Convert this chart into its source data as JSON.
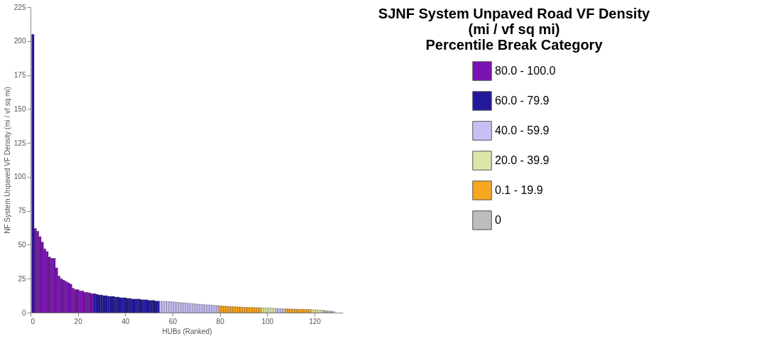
{
  "chart_data": {
    "type": "bar",
    "xlabel": "HUBs (Ranked)",
    "ylabel": "NF System Unpaved VF Density (mi / vf sq mi)",
    "legend_title": "SJNF System Unpaved Road VF Density\n(mi / vf sq mi)\nPercentile Break Category",
    "xlim": [
      0,
      132
    ],
    "xticks": [
      0,
      20,
      40,
      60,
      80,
      100,
      120
    ],
    "ylim": [
      0,
      225
    ],
    "yticks": [
      0,
      25,
      50,
      75,
      100,
      125,
      150,
      175,
      200,
      225
    ],
    "grid": false,
    "legend": "right",
    "series": [
      {
        "name": "80.0 - 100.0",
        "color": "#7a12b4",
        "x": [
          2,
          3,
          4,
          5,
          6,
          7,
          8,
          9,
          10,
          11,
          12,
          13,
          14,
          15,
          16,
          17,
          18,
          19,
          20,
          21,
          22,
          23,
          24,
          25,
          26
        ],
        "values": [
          62,
          60,
          56,
          52,
          47,
          45,
          41,
          40,
          40,
          33,
          27,
          25,
          24,
          23,
          22,
          21,
          18,
          17,
          17,
          16,
          16,
          15,
          15,
          14.5,
          14
        ]
      },
      {
        "name": "60.0 - 79.9",
        "color": "#23189c",
        "x": [
          1,
          27,
          28,
          29,
          30,
          31,
          32,
          33,
          34,
          35,
          36,
          37,
          38,
          39,
          40,
          41,
          42,
          43,
          44,
          45,
          46,
          47,
          48,
          49,
          50,
          51,
          52,
          53,
          54
        ],
        "values": [
          205,
          14,
          13.5,
          13,
          13,
          12.5,
          12.5,
          12,
          12,
          12,
          11.5,
          11.5,
          11,
          11,
          11,
          10.5,
          10.5,
          10,
          10,
          10,
          10,
          9.5,
          9.5,
          9.5,
          9,
          9,
          9,
          8.5,
          8.5
        ]
      },
      {
        "name": "40.0 - 59.9",
        "color": "#c8c0f4",
        "x": [
          55,
          56,
          57,
          58,
          59,
          60,
          61,
          62,
          63,
          64,
          65,
          66,
          67,
          68,
          69,
          70,
          71,
          72,
          73,
          74,
          75,
          76,
          77,
          78,
          79,
          104,
          105,
          106,
          107
        ],
        "values": [
          8.4,
          8.3,
          8.3,
          8.2,
          8.1,
          8.0,
          7.8,
          7.6,
          7.5,
          7.3,
          7.2,
          7.0,
          6.8,
          6.7,
          6.5,
          6.4,
          6.2,
          6.1,
          6.0,
          5.8,
          5.7,
          5.6,
          5.4,
          5.3,
          5.2,
          3.1,
          3.0,
          2.9,
          2.8
        ]
      },
      {
        "name": "20.0 - 39.9",
        "color": "#dbe8a8",
        "x": [
          98,
          99,
          100,
          101,
          102,
          103,
          119,
          120,
          121,
          122,
          123
        ],
        "values": [
          3.6,
          3.5,
          3.5,
          3.4,
          3.3,
          3.2,
          2.2,
          2.1,
          2.0,
          1.9,
          1.8
        ]
      },
      {
        "name": "0.1 - 19.9",
        "color": "#f8a820",
        "x": [
          80,
          81,
          82,
          83,
          84,
          85,
          86,
          87,
          88,
          89,
          90,
          91,
          92,
          93,
          94,
          95,
          96,
          97,
          108,
          109,
          110,
          111,
          112,
          113,
          114,
          115,
          116,
          117,
          118
        ],
        "values": [
          5.0,
          4.9,
          4.8,
          4.7,
          4.6,
          4.5,
          4.4,
          4.3,
          4.2,
          4.1,
          4.0,
          3.9,
          3.9,
          3.8,
          3.8,
          3.7,
          3.7,
          3.6,
          2.8,
          2.7,
          2.7,
          2.6,
          2.6,
          2.5,
          2.5,
          2.4,
          2.4,
          2.3,
          2.3
        ]
      },
      {
        "name": "0",
        "color": "#bdbdbd",
        "x": [
          124,
          125,
          126,
          127,
          128
        ],
        "values": [
          1.6,
          1.4,
          1.2,
          1.0,
          0.8
        ]
      }
    ]
  }
}
